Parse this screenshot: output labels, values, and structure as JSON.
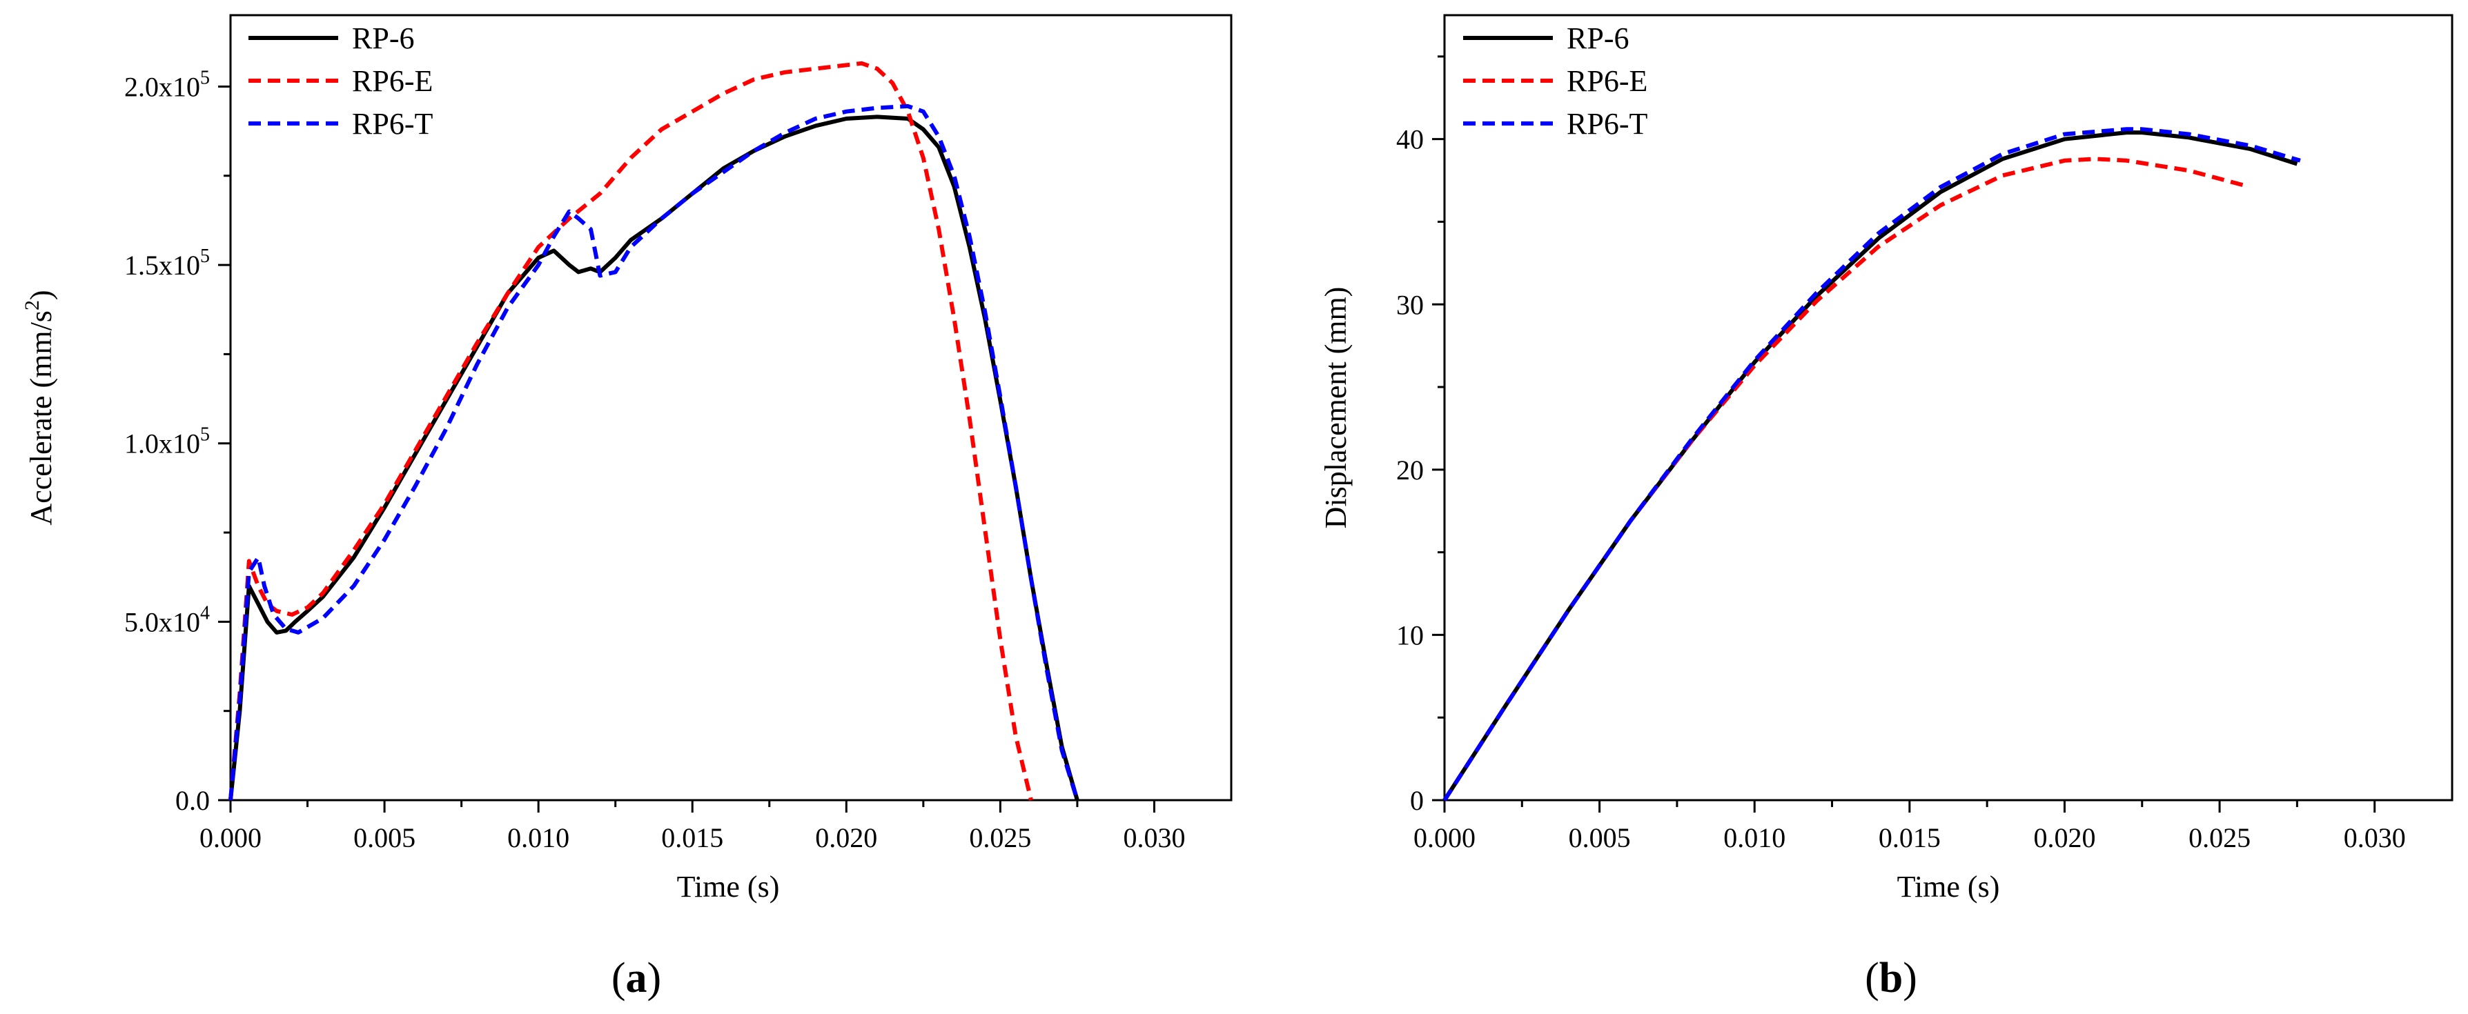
{
  "chart_data": [
    {
      "type": "line",
      "panel_label": "a",
      "xlabel": "Time (s)",
      "ylabel": "Accelerate (mm/s²)",
      "ylabel_base": "Accelerate (mm/s",
      "ylabel_sup": "2",
      "ylabel_close": ")",
      "xlim": [
        0,
        0.0325
      ],
      "ylim": [
        0,
        220000
      ],
      "xticks": [
        "0.000",
        "0.005",
        "0.010",
        "0.015",
        "0.020",
        "0.025",
        "0.030"
      ],
      "xtick_values": [
        0,
        0.005,
        0.01,
        0.015,
        0.02,
        0.025,
        0.03
      ],
      "yticks": [
        {
          "value": 0,
          "base": "0.0",
          "sup": ""
        },
        {
          "value": 50000,
          "base": "5.0x10",
          "sup": "4"
        },
        {
          "value": 100000,
          "base": "1.0x10",
          "sup": "5"
        },
        {
          "value": 150000,
          "base": "1.5x10",
          "sup": "5"
        },
        {
          "value": 200000,
          "base": "2.0x10",
          "sup": "5"
        }
      ],
      "legend": [
        "RP-6",
        "RP6-E",
        "RP6-T"
      ],
      "series": [
        {
          "name": "RP-6",
          "color": "#000000",
          "dash": "solid",
          "x": [
            0,
            0.0003,
            0.0006,
            0.0009,
            0.0012,
            0.0015,
            0.0018,
            0.0021,
            0.0025,
            0.003,
            0.004,
            0.005,
            0.006,
            0.007,
            0.008,
            0.009,
            0.01,
            0.0105,
            0.011,
            0.0113,
            0.0117,
            0.012,
            0.0125,
            0.013,
            0.014,
            0.015,
            0.016,
            0.017,
            0.018,
            0.019,
            0.02,
            0.021,
            0.022,
            0.0225,
            0.023,
            0.0235,
            0.024,
            0.0245,
            0.025,
            0.0255,
            0.026,
            0.0265,
            0.027,
            0.0275
          ],
          "y": [
            0,
            25000,
            60000,
            55000,
            50000,
            47000,
            47500,
            50000,
            53000,
            57000,
            68000,
            82000,
            97000,
            112000,
            127000,
            142000,
            152000,
            154000,
            150000,
            148000,
            149000,
            148000,
            152000,
            157000,
            163000,
            170000,
            177000,
            182000,
            186000,
            189000,
            191000,
            191500,
            191000,
            188000,
            183000,
            172000,
            155000,
            135000,
            112000,
            88000,
            62000,
            38000,
            15000,
            0
          ]
        },
        {
          "name": "RP6-E",
          "color": "#ff0000",
          "dash": "dashed",
          "x": [
            0,
            0.0003,
            0.0006,
            0.0009,
            0.0012,
            0.0015,
            0.002,
            0.0025,
            0.003,
            0.004,
            0.005,
            0.006,
            0.007,
            0.008,
            0.009,
            0.01,
            0.011,
            0.012,
            0.013,
            0.014,
            0.015,
            0.016,
            0.017,
            0.018,
            0.019,
            0.02,
            0.0205,
            0.021,
            0.0215,
            0.022,
            0.0225,
            0.023,
            0.0235,
            0.024,
            0.0245,
            0.025,
            0.0255,
            0.026
          ],
          "y": [
            0,
            30000,
            67000,
            60000,
            55000,
            53000,
            52000,
            54000,
            58000,
            70000,
            83000,
            98000,
            113000,
            128000,
            142000,
            155000,
            163000,
            170000,
            180000,
            188000,
            193000,
            198000,
            202000,
            204000,
            205000,
            206000,
            206500,
            205000,
            201000,
            193000,
            180000,
            160000,
            135000,
            107000,
            76000,
            45000,
            18000,
            0
          ]
        },
        {
          "name": "RP6-T",
          "color": "#0000ff",
          "dash": "dashed",
          "x": [
            0,
            0.0003,
            0.0006,
            0.0009,
            0.0011,
            0.0014,
            0.0018,
            0.0022,
            0.003,
            0.004,
            0.005,
            0.006,
            0.007,
            0.008,
            0.009,
            0.01,
            0.0105,
            0.011,
            0.0113,
            0.0117,
            0.012,
            0.0125,
            0.013,
            0.014,
            0.015,
            0.016,
            0.017,
            0.018,
            0.019,
            0.02,
            0.021,
            0.022,
            0.0225,
            0.023,
            0.0235,
            0.024,
            0.0245,
            0.025,
            0.0255,
            0.026,
            0.0265,
            0.027,
            0.0275
          ],
          "y": [
            0,
            28000,
            64000,
            68000,
            60000,
            52000,
            48000,
            47000,
            51000,
            60000,
            73000,
            88000,
            104000,
            122000,
            138000,
            150000,
            158000,
            165000,
            163000,
            160000,
            147000,
            148000,
            155000,
            163000,
            170000,
            176000,
            182000,
            187000,
            191000,
            193000,
            194000,
            194500,
            193000,
            186000,
            175000,
            158000,
            137000,
            113000,
            88000,
            62000,
            37000,
            14000,
            0
          ]
        }
      ]
    },
    {
      "type": "line",
      "panel_label": "b",
      "xlabel": "Time (s)",
      "ylabel": "Displacement (mm)",
      "xlim": [
        0,
        0.0325
      ],
      "ylim": [
        0,
        47.5
      ],
      "xticks": [
        "0.000",
        "0.005",
        "0.010",
        "0.015",
        "0.020",
        "0.025",
        "0.030"
      ],
      "xtick_values": [
        0,
        0.005,
        0.01,
        0.015,
        0.02,
        0.025,
        0.03
      ],
      "yticks": [
        {
          "value": 0,
          "base": "0",
          "sup": ""
        },
        {
          "value": 10,
          "base": "10",
          "sup": ""
        },
        {
          "value": 20,
          "base": "20",
          "sup": ""
        },
        {
          "value": 30,
          "base": "30",
          "sup": ""
        },
        {
          "value": 40,
          "base": "40",
          "sup": ""
        }
      ],
      "legend": [
        "RP-6",
        "RP6-E",
        "RP6-T"
      ],
      "series": [
        {
          "name": "RP-6",
          "color": "#000000",
          "dash": "solid",
          "x": [
            0,
            0.002,
            0.004,
            0.006,
            0.008,
            0.01,
            0.012,
            0.014,
            0.016,
            0.018,
            0.02,
            0.022,
            0.0225,
            0.024,
            0.026,
            0.0275
          ],
          "y": [
            0,
            5.8,
            11.5,
            16.9,
            21.8,
            26.5,
            30.5,
            34.0,
            36.8,
            38.8,
            40.0,
            40.4,
            40.4,
            40.1,
            39.4,
            38.5
          ]
        },
        {
          "name": "RP6-E",
          "color": "#ff0000",
          "dash": "dashed",
          "x": [
            0,
            0.002,
            0.004,
            0.006,
            0.008,
            0.01,
            0.012,
            0.014,
            0.016,
            0.018,
            0.02,
            0.021,
            0.022,
            0.024,
            0.0258
          ],
          "y": [
            0,
            5.8,
            11.5,
            16.9,
            21.8,
            26.3,
            30.2,
            33.5,
            36.0,
            37.8,
            38.7,
            38.8,
            38.7,
            38.1,
            37.2
          ]
        },
        {
          "name": "RP6-T",
          "color": "#0000ff",
          "dash": "dashed",
          "x": [
            0,
            0.002,
            0.004,
            0.006,
            0.008,
            0.01,
            0.012,
            0.014,
            0.016,
            0.018,
            0.02,
            0.022,
            0.0225,
            0.024,
            0.026,
            0.0276
          ],
          "y": [
            0,
            5.8,
            11.5,
            16.9,
            21.9,
            26.6,
            30.7,
            34.3,
            37.1,
            39.1,
            40.3,
            40.6,
            40.6,
            40.3,
            39.6,
            38.7
          ]
        }
      ]
    }
  ]
}
